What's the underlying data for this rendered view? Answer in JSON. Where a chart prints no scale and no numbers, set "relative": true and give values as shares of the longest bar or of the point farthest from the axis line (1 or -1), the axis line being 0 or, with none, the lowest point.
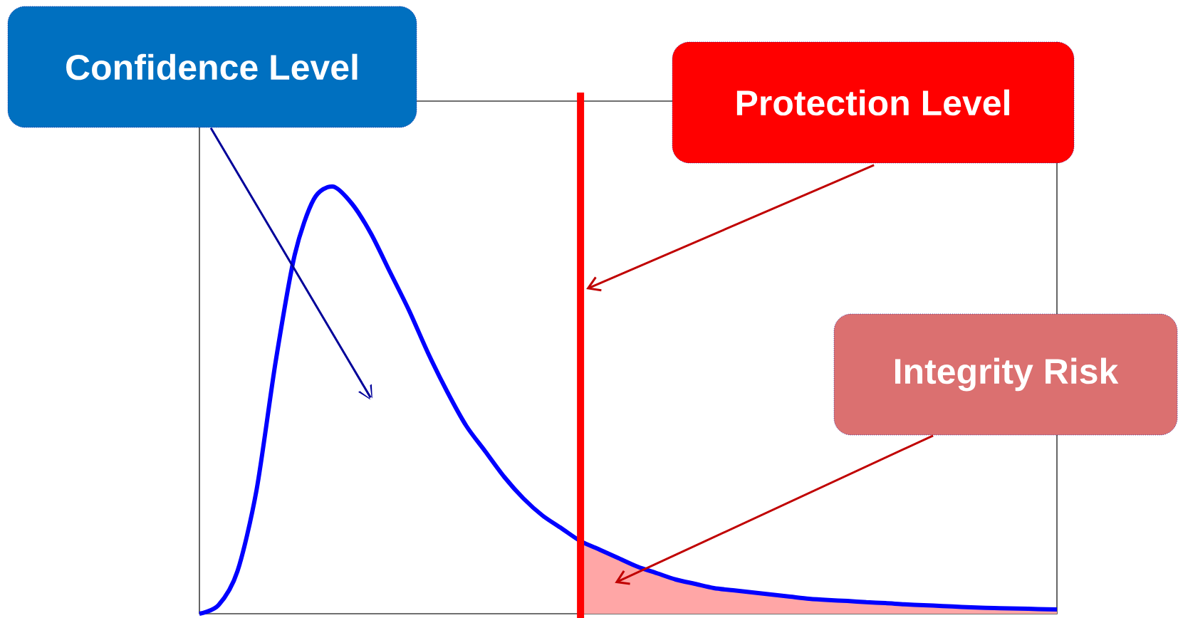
{
  "chart_data": {
    "type": "line",
    "relative": true,
    "categories": [
      null,
      null,
      null,
      null,
      null,
      null,
      null,
      null,
      null,
      null,
      null,
      null,
      null,
      null,
      null,
      null,
      null,
      null,
      null,
      null,
      null,
      null,
      null,
      null,
      null,
      null,
      null,
      null,
      null,
      null,
      null,
      null,
      null,
      null,
      null,
      null,
      null,
      null,
      null,
      null,
      null,
      null,
      null,
      null,
      null,
      null
    ],
    "series": [
      {
        "type": "area",
        "color": "#ffa6a6",
        "values": [
          null,
          null,
          null,
          null,
          null,
          null,
          null,
          null,
          null,
          null,
          null,
          null,
          null,
          null,
          null,
          null,
          null,
          null,
          null,
          null,
          0.17,
          0.15,
          0.13,
          0.11,
          0.095,
          0.08,
          0.07,
          0.06,
          0.055,
          0.05,
          0.045,
          0.04,
          0.035,
          0.032,
          0.03,
          0.027,
          0.025,
          0.022,
          0.02,
          0.018,
          0.016,
          0.014,
          0.013,
          0.012,
          0.011,
          0.01
        ]
      },
      {
        "color": "#0000ff",
        "values": [
          0.0,
          0.02,
          0.1,
          0.29,
          0.59,
          0.84,
          0.97,
          1.0,
          0.96,
          0.89,
          0.8,
          0.71,
          0.61,
          0.52,
          0.44,
          0.38,
          0.32,
          0.27,
          0.23,
          0.2,
          0.17,
          0.15,
          0.13,
          0.11,
          0.095,
          0.08,
          0.07,
          0.06,
          0.055,
          0.05,
          0.045,
          0.04,
          0.035,
          0.032,
          0.03,
          0.027,
          0.025,
          0.022,
          0.02,
          0.018,
          0.016,
          0.014,
          0.013,
          0.012,
          0.011,
          0.01
        ]
      }
    ],
    "annotations": [
      "Confidence Level",
      "Protection Level",
      "Integrity Risk"
    ]
  }
}
